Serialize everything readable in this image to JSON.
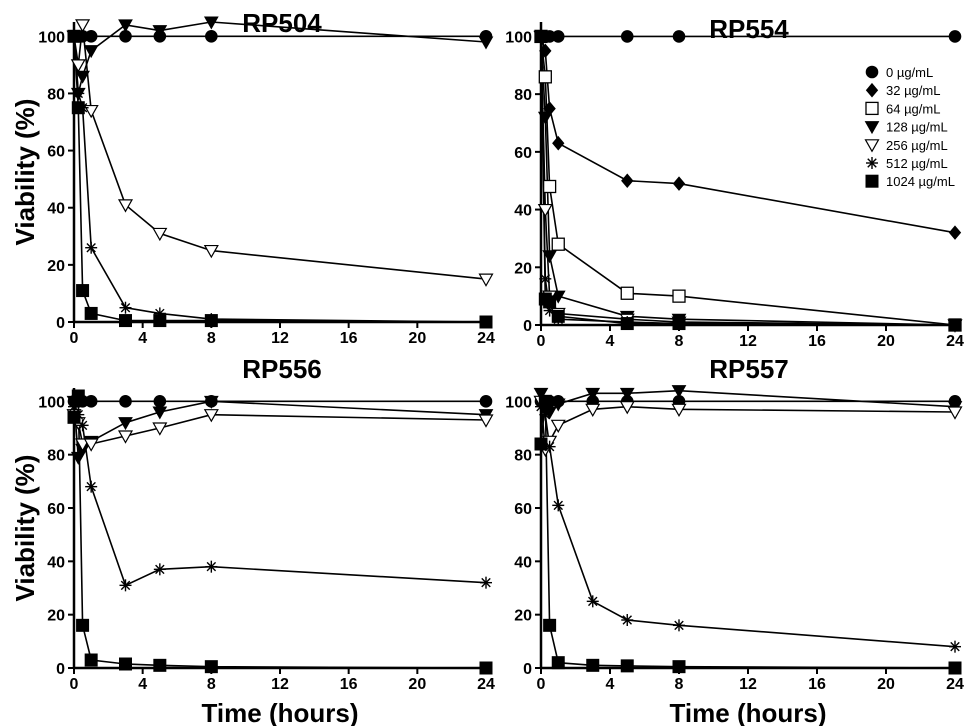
{
  "chart_data": [
    {
      "type": "line",
      "title": "RP504",
      "xlabel": "",
      "ylabel": "Viability (%)",
      "xlim": [
        0,
        24
      ],
      "ylim": [
        0,
        105
      ],
      "x_ticks": [
        0,
        4,
        8,
        12,
        16,
        20,
        24
      ],
      "y_ticks": [
        0,
        20,
        40,
        60,
        80,
        100
      ],
      "series": [
        {
          "name": "0 µg/mL",
          "marker": "circle",
          "x": [
            0,
            0.25,
            0.5,
            1,
            3,
            5,
            8,
            24
          ],
          "y": [
            100,
            100,
            100,
            100,
            100,
            100,
            100,
            100
          ]
        },
        {
          "name": "128 µg/mL",
          "marker": "triangle-down",
          "x": [
            0,
            0.25,
            0.5,
            1,
            3,
            5,
            8,
            24
          ],
          "y": [
            100,
            80,
            86,
            95,
            104,
            102,
            105,
            98
          ]
        },
        {
          "name": "256 µg/mL",
          "marker": "triangle-down-open",
          "x": [
            0,
            0.25,
            0.5,
            1,
            3,
            5,
            8,
            24
          ],
          "y": [
            100,
            90,
            104,
            74,
            41,
            31,
            25,
            15
          ]
        },
        {
          "name": "512 µg/mL",
          "marker": "asterisk",
          "x": [
            0,
            0.25,
            0.5,
            1,
            3,
            5,
            8,
            24
          ],
          "y": [
            100,
            80,
            75,
            26,
            5,
            3,
            1,
            0
          ]
        },
        {
          "name": "1024 µg/mL",
          "marker": "square",
          "x": [
            0,
            0.25,
            0.5,
            1,
            3,
            5,
            8,
            24
          ],
          "y": [
            100,
            75,
            11,
            3,
            0.5,
            0.5,
            0.5,
            0
          ]
        }
      ]
    },
    {
      "type": "line",
      "title": "RP554",
      "xlabel": "",
      "ylabel": "",
      "xlim": [
        0,
        24
      ],
      "ylim": [
        0,
        105
      ],
      "x_ticks": [
        0,
        4,
        8,
        12,
        16,
        20,
        24
      ],
      "y_ticks": [
        0,
        20,
        40,
        60,
        80,
        100
      ],
      "series": [
        {
          "name": "0 µg/mL",
          "marker": "circle",
          "x": [
            0,
            0.25,
            0.5,
            1,
            5,
            8,
            24
          ],
          "y": [
            100,
            100,
            100,
            100,
            100,
            100,
            100
          ]
        },
        {
          "name": "32 µg/mL",
          "marker": "diamond",
          "x": [
            0,
            0.25,
            0.5,
            1,
            5,
            8,
            24
          ],
          "y": [
            100,
            95,
            75,
            63,
            50,
            49,
            32
          ]
        },
        {
          "name": "64 µg/mL",
          "marker": "square-open",
          "x": [
            0,
            0.25,
            0.5,
            1,
            5,
            8,
            24
          ],
          "y": [
            100,
            86,
            48,
            28,
            11,
            10,
            0
          ]
        },
        {
          "name": "128 µg/mL",
          "marker": "triangle-down",
          "x": [
            0,
            0.25,
            0.5,
            1,
            5,
            8,
            24
          ],
          "y": [
            100,
            72,
            24,
            10,
            3,
            2,
            0
          ]
        },
        {
          "name": "256 µg/mL",
          "marker": "triangle-down-open",
          "x": [
            0,
            0.25,
            0.5,
            1,
            5,
            8,
            24
          ],
          "y": [
            100,
            40,
            10,
            4,
            2,
            1,
            0
          ]
        },
        {
          "name": "512 µg/mL",
          "marker": "asterisk",
          "x": [
            0,
            0.25,
            0.5,
            1,
            5,
            8,
            24
          ],
          "y": [
            100,
            16,
            5,
            2,
            1,
            0.5,
            0
          ]
        },
        {
          "name": "1024 µg/mL",
          "marker": "square",
          "x": [
            0,
            0.25,
            0.5,
            1,
            5,
            8,
            24
          ],
          "y": [
            100,
            9,
            8,
            3,
            0.5,
            0.5,
            0
          ]
        }
      ],
      "legend": {
        "placement": "top-right",
        "entries": [
          {
            "marker": "circle",
            "label": "0 µg/mL"
          },
          {
            "marker": "diamond",
            "label": "32 µg/mL"
          },
          {
            "marker": "square-open",
            "label": "64 µg/mL"
          },
          {
            "marker": "triangle-down",
            "label": "128 µg/mL"
          },
          {
            "marker": "triangle-down-open",
            "label": "256 µg/mL"
          },
          {
            "marker": "asterisk",
            "label": "512 µg/mL"
          },
          {
            "marker": "square",
            "label": "1024 µg/mL"
          }
        ]
      }
    },
    {
      "type": "line",
      "title": "RP556",
      "xlabel": "Time (hours)",
      "ylabel": "Viability (%)",
      "xlim": [
        0,
        24
      ],
      "ylim": [
        0,
        105
      ],
      "x_ticks": [
        0,
        4,
        8,
        12,
        16,
        20,
        24
      ],
      "y_ticks": [
        0,
        20,
        40,
        60,
        80,
        100
      ],
      "series": [
        {
          "name": "0 µg/mL",
          "marker": "circle",
          "x": [
            0,
            0.25,
            0.5,
            1,
            3,
            5,
            8,
            24
          ],
          "y": [
            100,
            100,
            100,
            100,
            100,
            100,
            100,
            100
          ]
        },
        {
          "name": "128 µg/mL",
          "marker": "triangle-down",
          "x": [
            0,
            0.25,
            0.5,
            1,
            3,
            5,
            8,
            24
          ],
          "y": [
            100,
            79,
            82,
            85,
            92,
            96,
            100,
            95
          ]
        },
        {
          "name": "256 µg/mL",
          "marker": "triangle-down-open",
          "x": [
            0,
            0.25,
            0.5,
            1,
            3,
            5,
            8,
            24
          ],
          "y": [
            95,
            92,
            84,
            84,
            87,
            90,
            95,
            93
          ]
        },
        {
          "name": "512 µg/mL",
          "marker": "asterisk",
          "x": [
            0,
            0.25,
            0.5,
            1,
            3,
            5,
            8,
            24
          ],
          "y": [
            98,
            95,
            91,
            68,
            31,
            37,
            38,
            32
          ]
        },
        {
          "name": "1024 µg/mL",
          "marker": "square",
          "x": [
            0,
            0.25,
            0.5,
            1,
            3,
            5,
            8,
            24
          ],
          "y": [
            94,
            102,
            16,
            3,
            1.5,
            1,
            0.5,
            0
          ]
        }
      ]
    },
    {
      "type": "line",
      "title": "RP557",
      "xlabel": "Time (hours)",
      "ylabel": "",
      "xlim": [
        0,
        24
      ],
      "ylim": [
        0,
        105
      ],
      "x_ticks": [
        0,
        4,
        8,
        12,
        16,
        20,
        24
      ],
      "y_ticks": [
        0,
        20,
        40,
        60,
        80,
        100
      ],
      "series": [
        {
          "name": "0 µg/mL",
          "marker": "circle",
          "x": [
            0,
            0.25,
            0.5,
            1,
            3,
            5,
            8,
            24
          ],
          "y": [
            100,
            100,
            100,
            100,
            100,
            100,
            100,
            100
          ]
        },
        {
          "name": "128 µg/mL",
          "marker": "triangle-down",
          "x": [
            0,
            0.25,
            0.5,
            1,
            3,
            5,
            8,
            24
          ],
          "y": [
            103,
            97,
            96,
            99,
            103,
            103,
            104,
            98
          ]
        },
        {
          "name": "256 µg/mL",
          "marker": "triangle-down-open",
          "x": [
            0,
            0.25,
            0.5,
            1,
            3,
            5,
            8,
            24
          ],
          "y": [
            100,
            82,
            85,
            91,
            97,
            98,
            97,
            96
          ]
        },
        {
          "name": "512 µg/mL",
          "marker": "asterisk",
          "x": [
            0,
            0.25,
            0.5,
            1,
            3,
            5,
            8,
            24
          ],
          "y": [
            98,
            95,
            83,
            61,
            25,
            18,
            16,
            8
          ]
        },
        {
          "name": "1024 µg/mL",
          "marker": "square",
          "x": [
            0,
            0.25,
            0.5,
            1,
            3,
            5,
            8,
            24
          ],
          "y": [
            84,
            100,
            16,
            2,
            1,
            0.8,
            0.5,
            0
          ]
        }
      ]
    }
  ]
}
